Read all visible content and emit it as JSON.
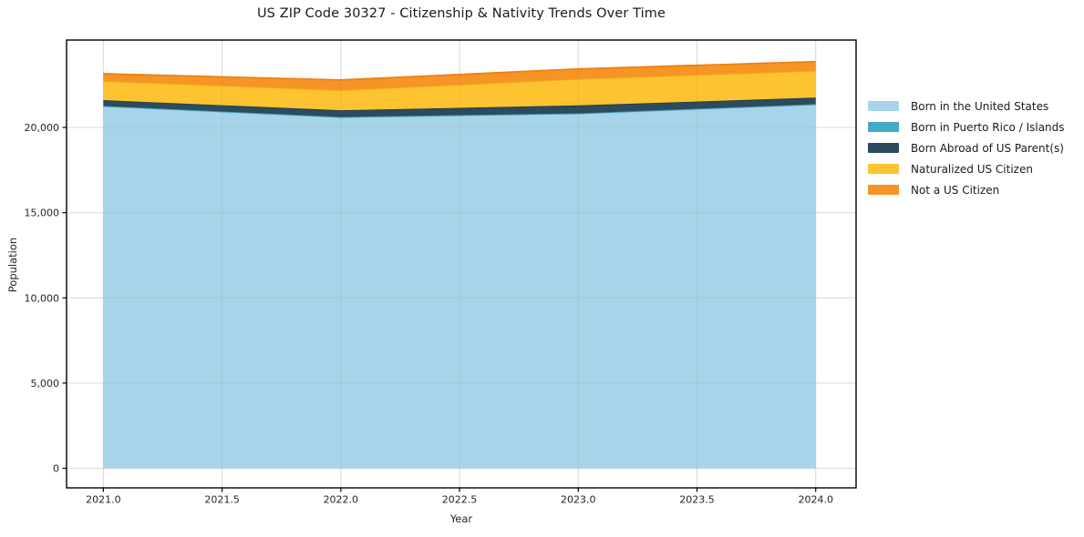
{
  "chart_data": {
    "type": "area",
    "stacked": true,
    "title": "US ZIP Code 30327 - Citizenship & Nativity Trends Over Time",
    "xlabel": "Year",
    "ylabel": "Population",
    "x": [
      2021,
      2022,
      2023,
      2024
    ],
    "series": [
      {
        "name": "Born in the United States",
        "color": "#A7D4E8",
        "edge": "#93C9E0",
        "values": [
          21228,
          20588,
          20798,
          21331
        ]
      },
      {
        "name": "Born in Puerto Rico / Islands",
        "color": "#44A8C7",
        "edge": "#3A97B4",
        "values": [
          32,
          28,
          30,
          35
        ]
      },
      {
        "name": "Born Abroad of US Parent(s)",
        "color": "#2C4B5D",
        "edge": "#223D4D",
        "values": [
          342,
          391,
          464,
          383
        ]
      },
      {
        "name": "Naturalized US Citizen",
        "color": "#FDC330",
        "edge": "#F0AC1C",
        "values": [
          1121,
          1178,
          1549,
          1577
        ]
      },
      {
        "name": "Not a US Citizen",
        "color": "#F79524",
        "edge": "#EC7F12",
        "values": [
          428,
          602,
          591,
          536
        ]
      }
    ],
    "x_ticks": {
      "values": [
        2021.0,
        2021.5,
        2022.0,
        2022.5,
        2023.0,
        2023.5,
        2024.0
      ],
      "labels": [
        "2021.0",
        "2021.5",
        "2022.0",
        "2022.5",
        "2023.0",
        "2023.5",
        "2024.0"
      ]
    },
    "y_ticks": {
      "values": [
        0,
        5000,
        10000,
        15000,
        20000
      ],
      "labels": [
        "0",
        "5,000",
        "10,000",
        "15,000",
        "20,000"
      ]
    },
    "xlim": [
      2020.845,
      2024.17
    ],
    "ylim": [
      -1148,
      25127
    ],
    "grid": true,
    "grid_color": "#e6e6e6",
    "spine_color": "#000000",
    "legend_position": "right-outside"
  }
}
